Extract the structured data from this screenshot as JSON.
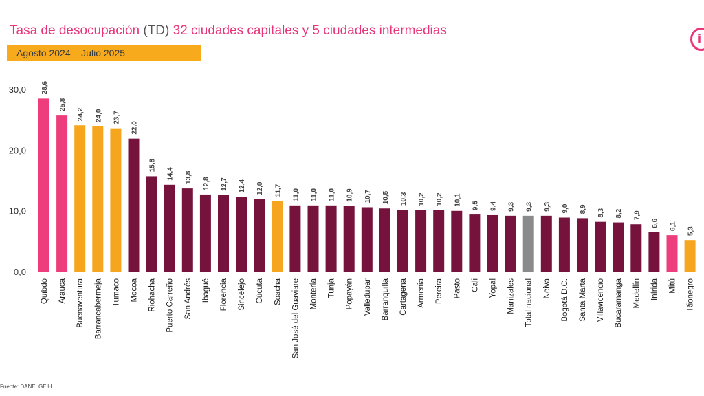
{
  "header": {
    "title_pre": "Tasa de desocupación ",
    "title_td": "(TD)",
    "title_post": " 32 ciudades capitales y 5 ciudades intermedias",
    "period": "Agosto 2024 – Julio 2025",
    "logo_letter": "i"
  },
  "source": "Fuente: DANE, GEIH",
  "colors": {
    "pink": "#ee3d7c",
    "orange": "#f6a51e",
    "maroon": "#75133d",
    "gray": "#8a8a8a"
  },
  "chart_data": {
    "type": "bar",
    "title": "Tasa de desocupación (TD) 32 ciudades capitales y 5 ciudades intermedias",
    "ylim": [
      0,
      30
    ],
    "yticks": [
      "0,0",
      "10,0",
      "20,0",
      "30,0"
    ],
    "grid": false,
    "categories": [
      "Quibdó",
      "Arauca",
      "Buenaventura",
      "Barrancabermeja",
      "Tumaco",
      "Mocoa",
      "Riohacha",
      "Puerto Carreño",
      "San Andrés",
      "Ibagué",
      "Florencia",
      "Sincelejo",
      "Cúcuta",
      "Soacha",
      "San José del Guaviare",
      "Montería",
      "Tunja",
      "Popayán",
      "Valledupar",
      "Barranquilla",
      "Cartagena",
      "Armenia",
      "Pereira",
      "Pasto",
      "Cali",
      "Yopal",
      "Manizales",
      "Total nacional",
      "Neiva",
      "Bogotá D.C.",
      "Santa Marta",
      "Villavicencio",
      "Bucaramanga",
      "Medellín",
      "Inírida",
      "Mitú",
      "Rionegro"
    ],
    "values": [
      28.6,
      25.8,
      24.2,
      24.0,
      23.7,
      22.0,
      15.8,
      14.4,
      13.8,
      12.8,
      12.7,
      12.4,
      12.0,
      11.7,
      11.0,
      11.0,
      11.0,
      10.9,
      10.7,
      10.5,
      10.3,
      10.2,
      10.2,
      10.1,
      9.5,
      9.4,
      9.3,
      9.3,
      9.3,
      9.0,
      8.9,
      8.3,
      8.2,
      7.9,
      6.6,
      6.1,
      5.3
    ],
    "labels": [
      "28,6",
      "25,8",
      "24,2",
      "24,0",
      "23,7",
      "22,0",
      "15,8",
      "14,4",
      "13,8",
      "12,8",
      "12,7",
      "12,4",
      "12,0",
      "11,7",
      "11,0",
      "11,0",
      "11,0",
      "10,9",
      "10,7",
      "10,5",
      "10,3",
      "10,2",
      "10,2",
      "10,1",
      "9,5",
      "9,4",
      "9,3",
      "9,3",
      "9,3",
      "9,0",
      "8,9",
      "8,3",
      "8,2",
      "7,9",
      "6,6",
      "6,1",
      "5,3"
    ],
    "colors": [
      "pink",
      "pink",
      "orange",
      "orange",
      "orange",
      "maroon",
      "maroon",
      "maroon",
      "maroon",
      "maroon",
      "maroon",
      "maroon",
      "maroon",
      "orange",
      "maroon",
      "maroon",
      "maroon",
      "maroon",
      "maroon",
      "maroon",
      "maroon",
      "maroon",
      "maroon",
      "maroon",
      "maroon",
      "maroon",
      "maroon",
      "gray",
      "maroon",
      "maroon",
      "maroon",
      "maroon",
      "maroon",
      "maroon",
      "maroon",
      "pink",
      "orange"
    ]
  }
}
